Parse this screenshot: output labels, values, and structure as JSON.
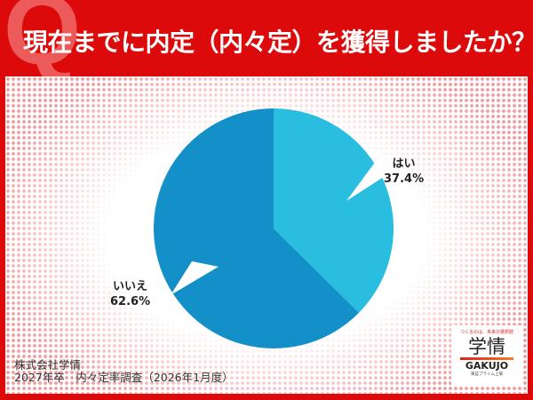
{
  "header": {
    "q_mark": "Q",
    "title": "現在までに内定（内々定）を獲得しましたか？"
  },
  "chart_data": {
    "type": "pie",
    "title": "現在までに内定（内々定）を獲得しましたか？",
    "slices": [
      {
        "label": "はい",
        "value": 37.4,
        "value_label": "37.4%",
        "color": "#29bde0"
      },
      {
        "label": "いいえ",
        "value": 62.6,
        "value_label": "62.6%",
        "color": "#1490c8"
      }
    ],
    "start": "12 o'clock",
    "direction": "clockwise"
  },
  "source": {
    "line1": "株式会社学情",
    "line2": "2027年卒　内々定率調査（2026年1月度）"
  },
  "logo": {
    "tagline": "つくるのは、未来の選択肢",
    "kanji": "学情",
    "name": "GAKUJO",
    "sub": "東証プライム上場"
  },
  "colors": {
    "frame": "#dc0a0a",
    "accent_dots": "#f29a9e"
  }
}
